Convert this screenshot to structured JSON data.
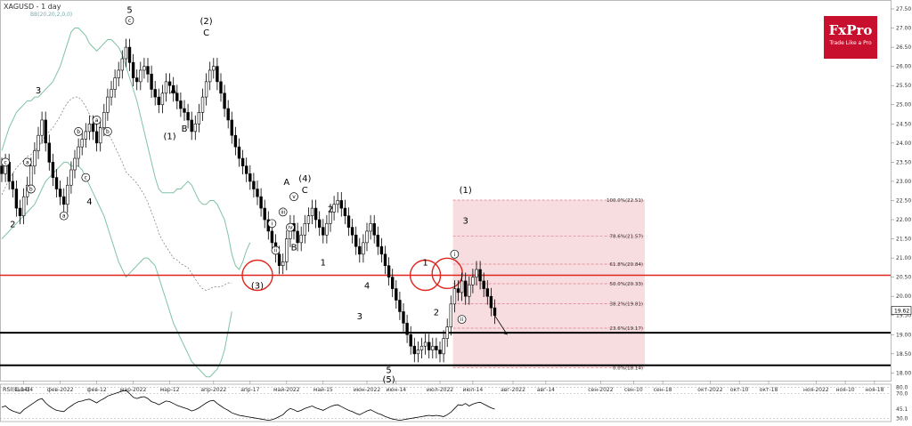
{
  "header": {
    "symbol": "XAGUSD - 1 day",
    "indicator": "BB(20,20,2,0,0)"
  },
  "logo": {
    "brand": "FxPro",
    "tagline": "Trade Like a Pro"
  },
  "colors": {
    "up": "#2e9e57",
    "down": "#d11f1f",
    "candle": "#000000",
    "band": "#7fc3a3",
    "level": "#e0241b",
    "fib_fill": "#f4d2d6"
  },
  "chart_data": {
    "type": "candlestick",
    "ylim": [
      17.8,
      27.5
    ],
    "y_ticks": [
      "27.50",
      "27.00",
      "26.50",
      "26.00",
      "25.50",
      "25.00",
      "24.50",
      "24.00",
      "23.50",
      "23.00",
      "22.50",
      "22.00",
      "21.50",
      "21.00",
      "20.50",
      "20.00",
      "19.50",
      "19.00",
      "18.50",
      "18.00"
    ],
    "x_ticks": [
      {
        "i": 6,
        "label": "янв-14"
      },
      {
        "i": 16,
        "label": "фев-2022"
      },
      {
        "i": 26,
        "label": "фев-12"
      },
      {
        "i": 36,
        "label": "мар-2022"
      },
      {
        "i": 46,
        "label": "мар-12"
      },
      {
        "i": 58,
        "label": "апр-2022"
      },
      {
        "i": 68,
        "label": "апр-17"
      },
      {
        "i": 78,
        "label": "май-2022"
      },
      {
        "i": 88,
        "label": "май-15"
      },
      {
        "i": 100,
        "label": "июн-2022"
      },
      {
        "i": 108,
        "label": "июн-14"
      },
      {
        "i": 120,
        "label": "июл-2022"
      },
      {
        "i": 129,
        "label": "июл-14"
      },
      {
        "i": 140,
        "label": "авг-2022"
      },
      {
        "i": 149,
        "label": "авг-14"
      },
      {
        "i": 164,
        "label": "сен-2022"
      },
      {
        "i": 173,
        "label": "сен-10"
      },
      {
        "i": 181,
        "label": "сен-18"
      },
      {
        "i": 194,
        "label": "окт-2022"
      },
      {
        "i": 202,
        "label": "окт-10"
      },
      {
        "i": 210,
        "label": "окт-18"
      },
      {
        "i": 223,
        "label": "ноя-2022"
      },
      {
        "i": 231,
        "label": "ноя-10"
      },
      {
        "i": 239,
        "label": "ноя-18"
      }
    ],
    "closes": [
      23.2,
      23.5,
      23.0,
      22.8,
      22.3,
      22.1,
      22.6,
      22.9,
      23.4,
      23.8,
      24.2,
      24.6,
      24.0,
      23.5,
      23.1,
      22.8,
      22.6,
      22.4,
      22.9,
      23.3,
      23.6,
      23.9,
      24.1,
      24.3,
      24.5,
      24.3,
      24.0,
      24.4,
      24.8,
      25.2,
      25.4,
      25.7,
      25.9,
      26.2,
      26.5,
      26.1,
      25.7,
      25.6,
      25.9,
      26.0,
      25.8,
      25.4,
      25.2,
      25.0,
      25.3,
      25.6,
      25.5,
      25.3,
      25.1,
      24.9,
      24.8,
      24.6,
      24.3,
      24.5,
      24.8,
      25.2,
      25.6,
      25.9,
      26.0,
      25.6,
      25.3,
      24.9,
      24.6,
      24.2,
      23.9,
      23.6,
      23.4,
      23.2,
      23.0,
      22.8,
      22.6,
      22.3,
      22.0,
      21.7,
      21.4,
      21.1,
      20.8,
      20.9,
      21.5,
      21.9,
      21.7,
      21.4,
      21.6,
      21.9,
      22.1,
      22.3,
      22.0,
      21.8,
      21.6,
      21.9,
      22.2,
      22.4,
      22.5,
      22.3,
      22.1,
      21.8,
      21.6,
      21.3,
      21.1,
      21.4,
      21.7,
      21.9,
      21.6,
      21.3,
      21.1,
      20.8,
      20.5,
      20.2,
      19.9,
      19.6,
      19.3,
      19.0,
      18.7,
      18.5,
      18.6,
      18.7,
      18.8,
      18.6,
      18.7,
      18.6,
      18.5,
      18.9,
      19.2,
      19.8,
      20.2,
      20.1,
      20.4,
      20.0,
      20.3,
      20.5,
      20.7,
      20.4,
      20.2,
      20.0,
      19.7,
      19.5
    ],
    "upper_band": [
      23.8,
      24.1,
      24.4,
      24.6,
      24.8,
      24.9,
      25.0,
      25.1,
      25.1,
      25.2,
      25.2,
      25.3,
      25.4,
      25.5,
      25.6,
      25.8,
      26.0,
      26.3,
      26.6,
      26.9,
      27.0,
      27.0,
      26.9,
      26.8,
      26.6,
      26.5,
      26.4,
      26.5,
      26.6,
      26.7,
      26.7,
      26.6,
      26.5,
      26.3,
      26.0,
      25.7,
      25.4,
      25.1,
      24.7,
      24.3,
      23.9,
      23.5,
      23.1,
      22.8,
      22.7,
      22.7,
      22.7,
      22.7,
      22.8,
      22.8,
      22.9,
      23.0,
      22.9,
      22.7,
      22.5,
      22.4,
      22.4,
      22.5,
      22.5,
      22.4,
      22.2,
      22.0,
      21.6,
      21.1,
      20.8,
      20.7,
      20.9,
      21.2,
      21.4
    ],
    "lower_band": [
      21.5,
      21.6,
      21.7,
      21.8,
      21.9,
      22.0,
      22.1,
      22.2,
      22.3,
      22.4,
      22.6,
      22.8,
      23.0,
      23.1,
      23.2,
      23.3,
      23.4,
      23.5,
      23.5,
      23.4,
      23.4,
      23.4,
      23.3,
      23.1,
      22.9,
      22.7,
      22.5,
      22.3,
      22.1,
      21.8,
      21.5,
      21.2,
      20.9,
      20.7,
      20.5,
      20.6,
      20.7,
      20.8,
      20.9,
      21.0,
      21.0,
      20.9,
      20.8,
      20.5,
      20.2,
      19.9,
      19.6,
      19.3,
      19.1,
      18.9,
      18.7,
      18.5,
      18.3,
      18.2,
      18.1,
      18.0,
      17.9,
      17.9,
      18.0,
      18.1,
      18.3,
      18.6,
      19.1,
      19.6
    ],
    "key_level": 20.55,
    "support_lines": [
      19.05,
      18.2
    ],
    "current_price_tag": "19.62",
    "fibonacci": [
      {
        "label": "100.0%(22.51)",
        "value": 22.51
      },
      {
        "label": "78.6%(21.57)",
        "value": 21.57
      },
      {
        "label": "61.8%(20.84)",
        "value": 20.84
      },
      {
        "label": "50.0%(20.33)",
        "value": 20.33
      },
      {
        "label": "38.2%(19.81)",
        "value": 19.81
      },
      {
        "label": "23.6%(19.17)",
        "value": 19.17
      },
      {
        "label": "0.0%(18.14)",
        "value": 18.14
      }
    ],
    "wave_labels": [
      {
        "text": "2",
        "i": 3,
        "v": 21.8
      },
      {
        "text": "3",
        "i": 10,
        "v": 25.3
      },
      {
        "text": "4",
        "i": 24,
        "v": 22.4
      },
      {
        "text": "5",
        "i": 35,
        "v": 27.4
      },
      {
        "text": "(1)",
        "i": 46,
        "v": 24.1
      },
      {
        "text": "A",
        "i": 47,
        "v": 25.3
      },
      {
        "text": "B",
        "i": 50,
        "v": 24.3
      },
      {
        "text": "(2)",
        "i": 56,
        "v": 27.1
      },
      {
        "text": "C",
        "i": 56,
        "v": 26.8
      },
      {
        "text": "(3)",
        "i": 70,
        "v": 20.2
      },
      {
        "text": "A",
        "i": 78,
        "v": 22.9
      },
      {
        "text": "B",
        "i": 80,
        "v": 21.2
      },
      {
        "text": "(4)",
        "i": 83,
        "v": 23.0
      },
      {
        "text": "C",
        "i": 83,
        "v": 22.7
      },
      {
        "text": "2",
        "i": 90,
        "v": 22.2
      },
      {
        "text": "1",
        "i": 88,
        "v": 20.8
      },
      {
        "text": "4",
        "i": 100,
        "v": 20.2
      },
      {
        "text": "3",
        "i": 98,
        "v": 19.4
      },
      {
        "text": "5",
        "i": 106,
        "v": 18.0
      },
      {
        "text": "(5)",
        "i": 106,
        "v": 17.75
      },
      {
        "text": "1",
        "i": 116,
        "v": 20.8
      },
      {
        "text": "2",
        "i": 119,
        "v": 19.5
      },
      {
        "text": "(1)",
        "i": 127,
        "v": 22.7
      },
      {
        "text": "3",
        "i": 127,
        "v": 21.9
      }
    ],
    "circled_labels": [
      {
        "text": "c",
        "i": 1,
        "v": 23.5
      },
      {
        "text": "a",
        "i": 7,
        "v": 23.5
      },
      {
        "text": "b",
        "i": 8,
        "v": 22.8
      },
      {
        "text": "a",
        "i": 17,
        "v": 22.1
      },
      {
        "text": "b",
        "i": 21,
        "v": 24.3
      },
      {
        "text": "c",
        "i": 23,
        "v": 23.1
      },
      {
        "text": "a",
        "i": 26,
        "v": 24.6
      },
      {
        "text": "b",
        "i": 29,
        "v": 24.3
      },
      {
        "text": "c",
        "i": 35,
        "v": 27.2
      },
      {
        "text": "i",
        "i": 74,
        "v": 21.9
      },
      {
        "text": "ii",
        "i": 75,
        "v": 21.2
      },
      {
        "text": "iii",
        "i": 77,
        "v": 22.2
      },
      {
        "text": "iv",
        "i": 79,
        "v": 21.8
      },
      {
        "text": "v",
        "i": 80,
        "v": 22.6
      },
      {
        "text": "i",
        "i": 124,
        "v": 21.1
      },
      {
        "text": "ii",
        "i": 126,
        "v": 19.4
      }
    ],
    "rsi": {
      "label": "RSI(C,14)",
      "ylim": [
        25,
        85
      ],
      "ticks": [
        "80.0",
        "70.0",
        "45.1",
        "30.0"
      ],
      "values": [
        48,
        50,
        45,
        42,
        40,
        38,
        44,
        48,
        52,
        56,
        60,
        62,
        55,
        50,
        46,
        43,
        42,
        41,
        46,
        50,
        54,
        57,
        58,
        60,
        61,
        58,
        55,
        59,
        62,
        66,
        68,
        70,
        72,
        74,
        75,
        70,
        64,
        62,
        64,
        65,
        62,
        57,
        55,
        52,
        55,
        58,
        57,
        54,
        51,
        49,
        47,
        45,
        42,
        44,
        47,
        51,
        55,
        58,
        59,
        54,
        50,
        46,
        43,
        39,
        37,
        35,
        34,
        33,
        32,
        31,
        30,
        29,
        28,
        27,
        28,
        30,
        33,
        36,
        42,
        46,
        44,
        41,
        43,
        46,
        48,
        50,
        47,
        45,
        43,
        46,
        49,
        51,
        52,
        49,
        46,
        43,
        41,
        38,
        36,
        39,
        42,
        44,
        41,
        38,
        36,
        33,
        31,
        29,
        28,
        27,
        28,
        29,
        30,
        31,
        32,
        33,
        34,
        35,
        34,
        35,
        34,
        33,
        36,
        40,
        46,
        52,
        51,
        54,
        50,
        53,
        55,
        56,
        53,
        50,
        47,
        45
      ]
    }
  }
}
